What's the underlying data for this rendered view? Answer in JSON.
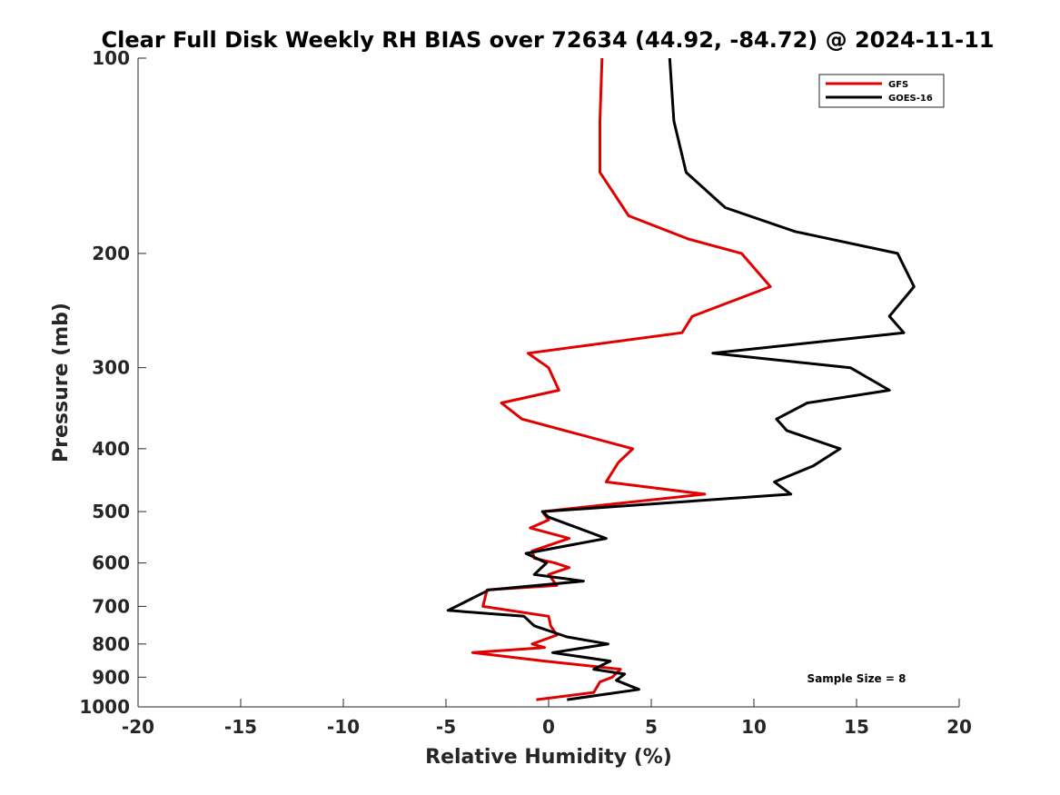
{
  "chart_data": {
    "type": "line",
    "title": "Clear Full Disk Weekly RH BIAS over 72634 (44.92, -84.72) @ 2024-11-11",
    "xlabel": "Relative Humidity (%)",
    "ylabel": "Pressure (mb)",
    "xlim": [
      -20,
      20
    ],
    "ylim": [
      100,
      1000
    ],
    "yscale": "log",
    "y_reversed": true,
    "xticks": [
      -20,
      -15,
      -10,
      -5,
      0,
      5,
      10,
      15,
      20
    ],
    "xtick_labels": [
      "-20",
      "-15",
      "-10",
      "-5",
      "0",
      "5",
      "10",
      "15",
      "20"
    ],
    "yticks": [
      100,
      200,
      300,
      400,
      500,
      600,
      700,
      800,
      900,
      1000
    ],
    "ytick_labels": [
      "100",
      "200",
      "300",
      "400",
      "500",
      "600",
      "700",
      "800",
      "900",
      "1000"
    ],
    "grid": false,
    "legend_position": "top-right",
    "annotation": "Sample Size = 8",
    "series": [
      {
        "name": "GFS",
        "color": "#e00000",
        "points": [
          {
            "x": 2.6,
            "p": 100
          },
          {
            "x": 2.5,
            "p": 125
          },
          {
            "x": 2.5,
            "p": 150
          },
          {
            "x": 3.9,
            "p": 175
          },
          {
            "x": 6.8,
            "p": 190
          },
          {
            "x": 9.4,
            "p": 200
          },
          {
            "x": 10.8,
            "p": 225
          },
          {
            "x": 7.0,
            "p": 250
          },
          {
            "x": 6.5,
            "p": 265
          },
          {
            "x": -1.0,
            "p": 285
          },
          {
            "x": 0.0,
            "p": 300
          },
          {
            "x": 0.5,
            "p": 325
          },
          {
            "x": -2.3,
            "p": 340
          },
          {
            "x": -1.3,
            "p": 360
          },
          {
            "x": 4.1,
            "p": 400
          },
          {
            "x": 3.4,
            "p": 420
          },
          {
            "x": 2.8,
            "p": 450
          },
          {
            "x": 7.6,
            "p": 470
          },
          {
            "x": -0.3,
            "p": 500
          },
          {
            "x": 0.0,
            "p": 515
          },
          {
            "x": -0.9,
            "p": 530
          },
          {
            "x": 1.0,
            "p": 550
          },
          {
            "x": -0.8,
            "p": 575
          },
          {
            "x": -0.7,
            "p": 590
          },
          {
            "x": 0.3,
            "p": 600
          },
          {
            "x": 1.0,
            "p": 610
          },
          {
            "x": 0.0,
            "p": 625
          },
          {
            "x": 0.4,
            "p": 650
          },
          {
            "x": -3.0,
            "p": 660
          },
          {
            "x": -3.2,
            "p": 700
          },
          {
            "x": 0.0,
            "p": 725
          },
          {
            "x": 0.1,
            "p": 750
          },
          {
            "x": 0.4,
            "p": 775
          },
          {
            "x": -0.8,
            "p": 800
          },
          {
            "x": -0.2,
            "p": 810
          },
          {
            "x": -3.7,
            "p": 825
          },
          {
            "x": -0.2,
            "p": 850
          },
          {
            "x": 3.5,
            "p": 875
          },
          {
            "x": 3.1,
            "p": 900
          },
          {
            "x": 2.5,
            "p": 915
          },
          {
            "x": 2.2,
            "p": 950
          },
          {
            "x": -0.6,
            "p": 975
          }
        ]
      },
      {
        "name": "GOES-16",
        "color": "#000000",
        "points": [
          {
            "x": 5.9,
            "p": 100
          },
          {
            "x": 6.1,
            "p": 125
          },
          {
            "x": 6.7,
            "p": 150
          },
          {
            "x": 8.6,
            "p": 170
          },
          {
            "x": 12.0,
            "p": 185
          },
          {
            "x": 17.0,
            "p": 200
          },
          {
            "x": 17.8,
            "p": 225
          },
          {
            "x": 16.6,
            "p": 250
          },
          {
            "x": 17.3,
            "p": 265
          },
          {
            "x": 8.0,
            "p": 285
          },
          {
            "x": 14.7,
            "p": 300
          },
          {
            "x": 16.6,
            "p": 325
          },
          {
            "x": 12.6,
            "p": 340
          },
          {
            "x": 11.1,
            "p": 360
          },
          {
            "x": 11.6,
            "p": 375
          },
          {
            "x": 14.2,
            "p": 400
          },
          {
            "x": 12.9,
            "p": 425
          },
          {
            "x": 11.0,
            "p": 450
          },
          {
            "x": 11.8,
            "p": 470
          },
          {
            "x": -0.3,
            "p": 500
          },
          {
            "x": 0.0,
            "p": 510
          },
          {
            "x": 2.8,
            "p": 550
          },
          {
            "x": -1.1,
            "p": 580
          },
          {
            "x": -0.1,
            "p": 600
          },
          {
            "x": -0.7,
            "p": 625
          },
          {
            "x": 1.7,
            "p": 640
          },
          {
            "x": -2.9,
            "p": 660
          },
          {
            "x": -4.1,
            "p": 690
          },
          {
            "x": -4.9,
            "p": 710
          },
          {
            "x": -1.2,
            "p": 725
          },
          {
            "x": -0.7,
            "p": 750
          },
          {
            "x": 0.9,
            "p": 780
          },
          {
            "x": 2.9,
            "p": 800
          },
          {
            "x": 0.2,
            "p": 825
          },
          {
            "x": 3.0,
            "p": 850
          },
          {
            "x": 2.2,
            "p": 875
          },
          {
            "x": 3.7,
            "p": 890
          },
          {
            "x": 3.3,
            "p": 910
          },
          {
            "x": 4.4,
            "p": 940
          },
          {
            "x": 0.9,
            "p": 975
          }
        ]
      }
    ]
  }
}
